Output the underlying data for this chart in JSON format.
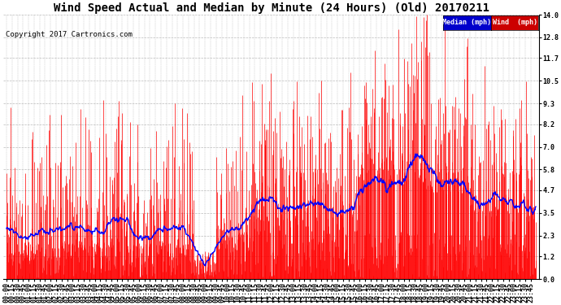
{
  "title": "Wind Speed Actual and Median by Minute (24 Hours) (Old) 20170211",
  "copyright": "Copyright 2017 Cartronics.com",
  "yticks": [
    0.0,
    1.2,
    2.3,
    3.5,
    4.7,
    5.8,
    7.0,
    8.2,
    9.3,
    10.5,
    11.7,
    12.8,
    14.0
  ],
  "ylim": [
    0.0,
    14.0
  ],
  "bg_color": "#ffffff",
  "plot_bg_color": "#ffffff",
  "grid_color": "#bbbbbb",
  "wind_color": "#ff0000",
  "median_color": "#0000ff",
  "legend_median_bg": "#0000cc",
  "legend_wind_bg": "#cc0000",
  "title_fontsize": 10,
  "copyright_fontsize": 6.5,
  "tick_fontsize": 6,
  "n_minutes": 1440,
  "seed": 42
}
